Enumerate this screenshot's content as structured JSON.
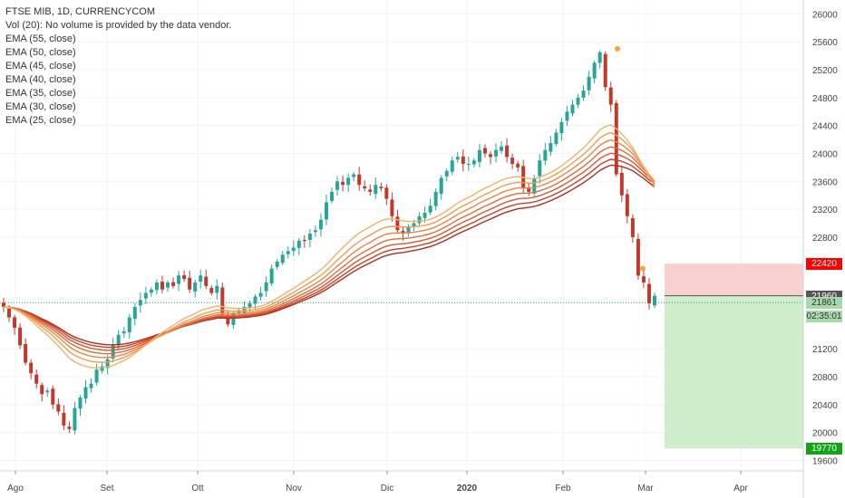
{
  "legend": {
    "title": "FTSE MIB, 1D, CURRENCYCOM",
    "volume": "Vol (20): No volume is provided by the data vendor.",
    "ema": [
      "EMA (55, close)",
      "EMA (50, close)",
      "EMA (45, close)",
      "EMA (40, close)",
      "EMA (35, close)",
      "EMA (30, close)",
      "EMA (25, close)"
    ]
  },
  "price_tags": {
    "stop": {
      "label": "22420",
      "color": "#ff0000"
    },
    "last": {
      "label": "21960",
      "color": "#555555"
    },
    "prev": {
      "label": "21861",
      "color": "#a8d9aa"
    },
    "timer": {
      "label": "02:35:01",
      "color": "#a8d9aa"
    },
    "target": {
      "label": "19770",
      "color": "#13a316"
    }
  },
  "colors": {
    "up": "#26a69a",
    "down": "#c0392b",
    "ema": [
      "#b22a1e",
      "#c84022",
      "#d95530",
      "#e26a3a",
      "#ea8444",
      "#f09a52",
      "#f5b066"
    ],
    "risk_zone": "#f8c8c8",
    "reward_zone": "#c9ecc6",
    "marker": "#f5a53a"
  },
  "chart_data": {
    "type": "candlestick",
    "x_ticks": [
      "Ago",
      "Set",
      "Ott",
      "Nov",
      "Dic",
      "2020",
      "Feb",
      "Mar",
      "Apr"
    ],
    "y_ticks": [
      26000,
      25600,
      25200,
      24800,
      24400,
      24000,
      23600,
      23200,
      22800,
      21200,
      20800,
      20400,
      20000,
      19600
    ],
    "ylim": [
      19450,
      26200
    ],
    "series_closes": [
      21800,
      21650,
      21500,
      21250,
      21000,
      20850,
      20700,
      20550,
      20600,
      20400,
      20300,
      20100,
      20050,
      20350,
      20500,
      20650,
      20700,
      20900,
      20950,
      21050,
      21250,
      21400,
      21450,
      21650,
      21800,
      21900,
      22000,
      22050,
      22150,
      22050,
      22150,
      22100,
      22250,
      22200,
      22050,
      22150,
      22250,
      22100,
      22000,
      22100,
      21700,
      21550,
      21700,
      21750,
      21800,
      21850,
      21950,
      22000,
      22150,
      22350,
      22450,
      22550,
      22600,
      22650,
      22750,
      22750,
      22850,
      22900,
      23050,
      23300,
      23450,
      23600,
      23550,
      23650,
      23700,
      23550,
      23500,
      23450,
      23550,
      23500,
      23350,
      23100,
      22900,
      22850,
      22950,
      23000,
      23100,
      23150,
      23250,
      23450,
      23650,
      23750,
      23900,
      23950,
      23850,
      23850,
      23900,
      24050,
      24000,
      23950,
      24050,
      24100,
      23950,
      23850,
      23800,
      23500,
      23450,
      23650,
      23900,
      24050,
      24150,
      24300,
      24450,
      24600,
      24700,
      24800,
      24900,
      25100,
      25300,
      25450,
      24950,
      24700,
      23700,
      23400,
      23100,
      22800,
      22250,
      22150,
      21850,
      21960
    ],
    "ema_periods": [
      55,
      50,
      45,
      40,
      35,
      30,
      25
    ],
    "markers_prices": [
      25500,
      22350
    ],
    "position": {
      "type": "long",
      "entry": 21960,
      "stop": 22420,
      "target": 19770
    }
  }
}
